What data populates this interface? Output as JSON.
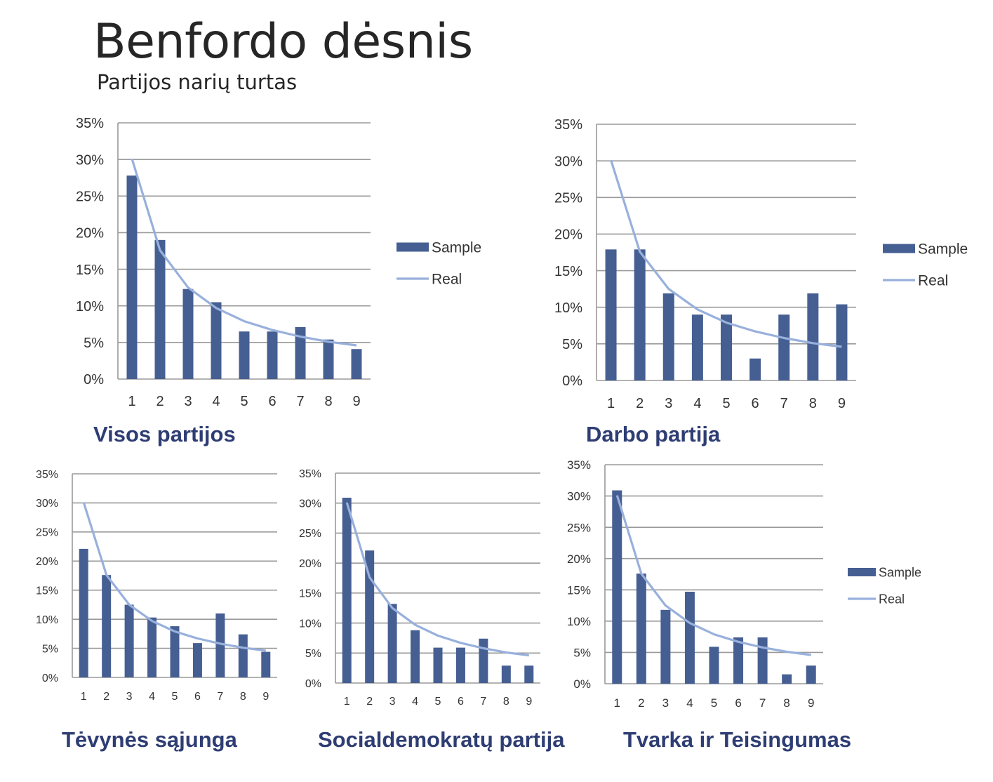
{
  "header": {
    "title": "Benfordo dėsnis",
    "subtitle": "Partijos narių turtas"
  },
  "colors": {
    "bar": "#465f93",
    "line": "#98b0dc",
    "grid": "#9a9a9a",
    "caption": "#2e3d73"
  },
  "legend": {
    "sample": "Sample",
    "real": "Real"
  },
  "chart_data": [
    {
      "id": "visos",
      "caption": "Visos partijos",
      "type": "bar",
      "categories": [
        "1",
        "2",
        "3",
        "4",
        "5",
        "6",
        "7",
        "8",
        "9"
      ],
      "ylim": [
        0,
        35
      ],
      "yticks": [
        "0%",
        "5%",
        "10%",
        "15%",
        "20%",
        "25%",
        "30%",
        "35%"
      ],
      "grid": true,
      "legend_position": "right",
      "series": [
        {
          "name": "Sample",
          "kind": "bar",
          "values": [
            27.8,
            19.0,
            12.3,
            10.5,
            6.5,
            6.5,
            7.1,
            5.4,
            4.1
          ]
        },
        {
          "name": "Real",
          "kind": "line",
          "values": [
            30.1,
            17.6,
            12.5,
            9.7,
            7.9,
            6.7,
            5.8,
            5.1,
            4.6
          ]
        }
      ]
    },
    {
      "id": "darbo",
      "caption": "Darbo partija",
      "type": "bar",
      "categories": [
        "1",
        "2",
        "3",
        "4",
        "5",
        "6",
        "7",
        "8",
        "9"
      ],
      "ylim": [
        0,
        35
      ],
      "yticks": [
        "0%",
        "5%",
        "10%",
        "15%",
        "20%",
        "25%",
        "30%",
        "35%"
      ],
      "grid": true,
      "legend_position": "right",
      "series": [
        {
          "name": "Sample",
          "kind": "bar",
          "values": [
            17.9,
            17.9,
            11.9,
            9.0,
            9.0,
            3.0,
            9.0,
            11.9,
            10.4
          ]
        },
        {
          "name": "Real",
          "kind": "line",
          "values": [
            30.1,
            17.6,
            12.5,
            9.7,
            7.9,
            6.7,
            5.8,
            5.1,
            4.6
          ]
        }
      ]
    },
    {
      "id": "tevynes",
      "caption": "Tėvynės sąjunga",
      "type": "bar",
      "categories": [
        "1",
        "2",
        "3",
        "4",
        "5",
        "6",
        "7",
        "8",
        "9"
      ],
      "ylim": [
        0,
        35
      ],
      "yticks": [
        "0%",
        "5%",
        "10%",
        "15%",
        "20%",
        "25%",
        "30%",
        "35%"
      ],
      "grid": true,
      "series": [
        {
          "name": "Sample",
          "kind": "bar",
          "values": [
            22.1,
            17.6,
            12.5,
            10.3,
            8.8,
            5.9,
            11.0,
            7.4,
            4.4
          ]
        },
        {
          "name": "Real",
          "kind": "line",
          "values": [
            30.1,
            17.6,
            12.5,
            9.7,
            7.9,
            6.7,
            5.8,
            5.1,
            4.6
          ]
        }
      ]
    },
    {
      "id": "social",
      "caption": "Socialdemokratų partija",
      "type": "bar",
      "categories": [
        "1",
        "2",
        "3",
        "4",
        "5",
        "6",
        "7",
        "8",
        "9"
      ],
      "ylim": [
        0,
        35
      ],
      "yticks": [
        "0%",
        "5%",
        "10%",
        "15%",
        "20%",
        "25%",
        "30%",
        "35%"
      ],
      "grid": true,
      "series": [
        {
          "name": "Sample",
          "kind": "bar",
          "values": [
            30.9,
            22.1,
            13.2,
            8.8,
            5.9,
            5.9,
            7.4,
            2.9,
            2.9
          ]
        },
        {
          "name": "Real",
          "kind": "line",
          "values": [
            30.1,
            17.6,
            12.5,
            9.7,
            7.9,
            6.7,
            5.8,
            5.1,
            4.6
          ]
        }
      ]
    },
    {
      "id": "tvarka",
      "caption": "Tvarka ir Teisingumas",
      "type": "bar",
      "categories": [
        "1",
        "2",
        "3",
        "4",
        "5",
        "6",
        "7",
        "8",
        "9"
      ],
      "ylim": [
        0,
        35
      ],
      "yticks": [
        "0%",
        "5%",
        "10%",
        "15%",
        "20%",
        "25%",
        "30%",
        "35%"
      ],
      "grid": true,
      "legend_position": "right",
      "series": [
        {
          "name": "Sample",
          "kind": "bar",
          "values": [
            30.9,
            17.6,
            11.8,
            14.7,
            5.9,
            7.4,
            7.4,
            1.5,
            2.9
          ]
        },
        {
          "name": "Real",
          "kind": "line",
          "values": [
            30.1,
            17.6,
            12.5,
            9.7,
            7.9,
            6.7,
            5.8,
            5.1,
            4.6
          ]
        }
      ]
    }
  ]
}
